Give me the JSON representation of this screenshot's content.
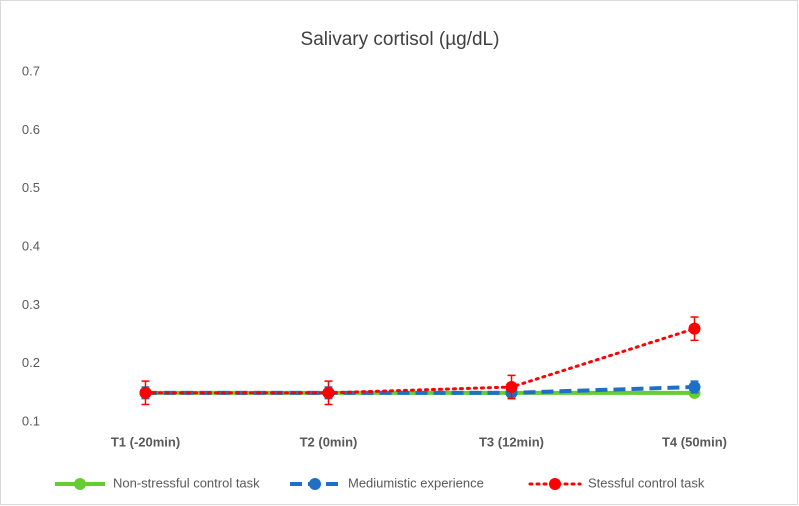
{
  "chart_data": {
    "type": "line",
    "title": "Salivary cortisol (µg/dL)",
    "categories": [
      "T1 (-20min)",
      "T2 (0min)",
      "T3 (12min)",
      "T4 (50min)"
    ],
    "series": [
      {
        "name": "Non-stressful control task",
        "color": "#66cc33",
        "line_style": "solid",
        "values": [
          0.15,
          0.15,
          0.15,
          0.15
        ]
      },
      {
        "name": "Mediumistic experience",
        "color": "#1f6fc5",
        "line_style": "dashed",
        "values": [
          0.15,
          0.15,
          0.15,
          0.16
        ],
        "errors": [
          0.01,
          0.01,
          0.01,
          0.01
        ]
      },
      {
        "name": "Stessful control task",
        "color": "#ff0000",
        "line_style": "dotted",
        "values": [
          0.15,
          0.15,
          0.16,
          0.26
        ],
        "errors": [
          0.02,
          0.02,
          0.02,
          0.02
        ]
      }
    ],
    "ylim": [
      0.1,
      0.7
    ],
    "yticks": [
      0.1,
      0.2,
      0.3,
      0.4,
      0.5,
      0.6,
      0.7
    ],
    "grid": false,
    "legend": "bottom"
  }
}
